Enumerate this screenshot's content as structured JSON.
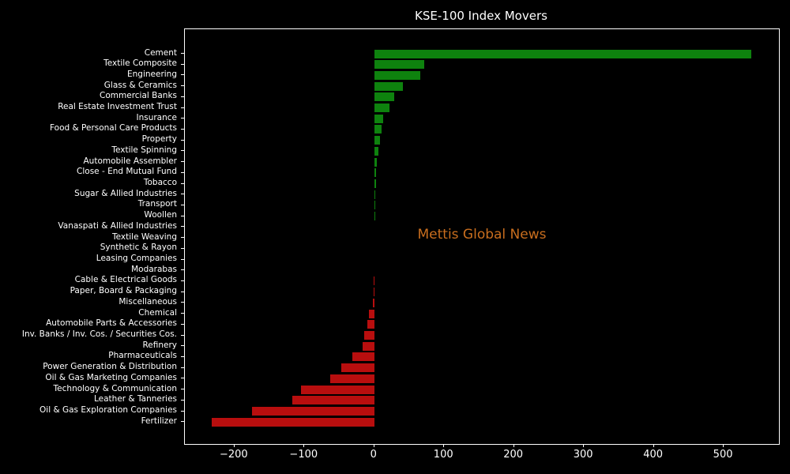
{
  "title": "KSE-100 Index Movers",
  "watermark": "Mettis Global News",
  "colors": {
    "background": "#000000",
    "positive": "#0e820e",
    "negative": "#b80e0e",
    "text": "#ffffff",
    "spine": "#ffffff",
    "watermark": "#c96e1e"
  },
  "chart_data": {
    "type": "bar",
    "orientation": "horizontal",
    "title": "KSE-100 Index Movers",
    "xlabel": "",
    "ylabel": "",
    "grid": false,
    "xlim": [
      -271,
      579
    ],
    "x_ticks": [
      -200,
      -100,
      0,
      100,
      200,
      300,
      400,
      500
    ],
    "categories": [
      "Cement",
      "Textile Composite",
      "Engineering",
      "Glass & Ceramics",
      "Commercial Banks",
      "Real Estate Investment Trust",
      "Insurance",
      "Food & Personal Care Products",
      "Property",
      "Textile Spinning",
      "Automobile Assembler",
      "Close - End Mutual Fund",
      "Tobacco",
      "Sugar & Allied Industries",
      "Transport",
      "Woollen",
      "Vanaspati & Allied Industries",
      "Textile Weaving",
      "Synthetic & Rayon",
      "Leasing Companies",
      "Modarabas",
      "Cable & Electrical Goods",
      "Paper, Board & Packaging",
      "Miscellaneous",
      "Chemical",
      "Automobile Parts & Accessories",
      "Inv. Banks / Inv. Cos. / Securities Cos.",
      "Refinery",
      "Pharmaceuticals",
      "Power Generation & Distribution",
      "Oil & Gas Marketing Companies",
      "Technology & Communication",
      "Leather & Tanneries",
      "Oil & Gas Exploration Companies",
      "Fertilizer"
    ],
    "values": [
      539,
      71,
      66,
      41,
      29,
      22,
      13,
      10,
      8,
      6,
      4,
      2.5,
      2,
      1.6,
      1.4,
      1.1,
      0,
      0,
      0,
      0,
      0,
      -0.5,
      -1,
      -1.5,
      -8,
      -10,
      -14,
      -17,
      -31,
      -47,
      -63,
      -105,
      -117,
      -175,
      -233
    ]
  }
}
